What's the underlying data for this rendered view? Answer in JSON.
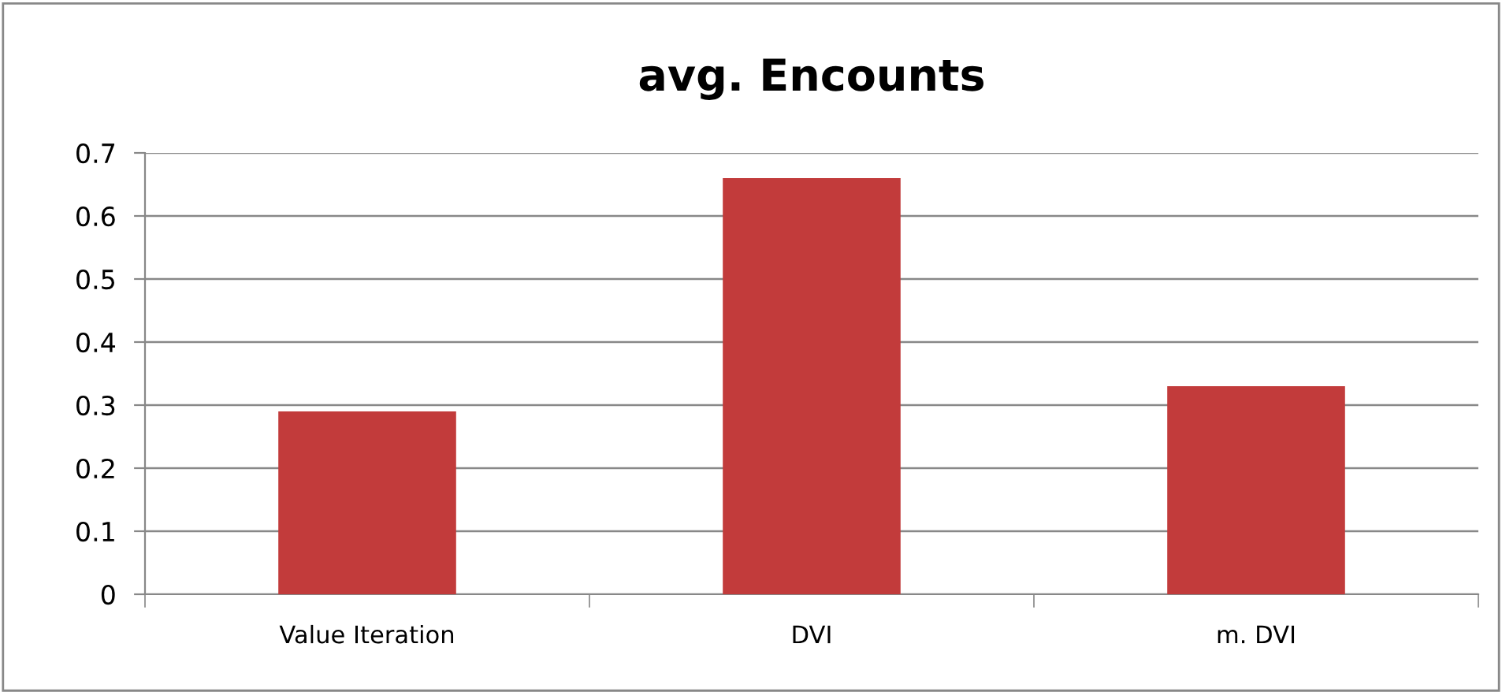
{
  "chart_data": {
    "type": "bar",
    "title": "avg. Encounts",
    "categories": [
      "Value Iteration",
      "DVI",
      "m. DVI"
    ],
    "values": [
      0.29,
      0.66,
      0.33
    ],
    "color": "#c23b3b",
    "ylim": [
      0,
      0.7
    ],
    "yticks": [
      0,
      0.1,
      0.2,
      0.3,
      0.4,
      0.5,
      0.6,
      0.7
    ],
    "grid": "y",
    "legend": false
  }
}
